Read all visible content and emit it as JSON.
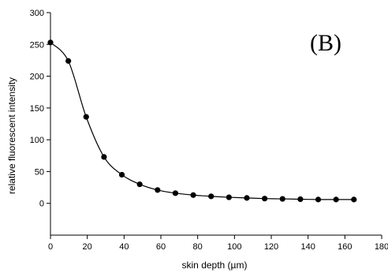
{
  "chart_data": {
    "type": "scatter",
    "panel_label": "(B)",
    "xlabel": "skin depth (µm)",
    "ylabel": "relative fluorescent intensity",
    "xlim": [
      0,
      180
    ],
    "ylim": [
      -50,
      300
    ],
    "x_ticks": [
      "0",
      "20",
      "40",
      "60",
      "80",
      "100",
      "120",
      "140",
      "160",
      "180"
    ],
    "y_ticks": [
      "0",
      "50",
      "100",
      "150",
      "200",
      "250",
      "300"
    ],
    "grid": false,
    "legend": "none",
    "series": [
      {
        "x": [
          0,
          9.7,
          19.4,
          29.1,
          38.8,
          48.5,
          58.2,
          67.9,
          77.6,
          87.3,
          97,
          106.7,
          116.4,
          126.1,
          135.8,
          145.5,
          155.2,
          164.9
        ],
        "y": [
          253,
          224,
          136,
          73,
          45,
          30,
          21,
          16,
          13,
          11,
          9.5,
          8.5,
          7.5,
          7,
          6.5,
          6,
          6,
          6
        ],
        "marker": "filled-circle",
        "fit_line": true
      }
    ],
    "colors": {
      "marker": "#000000",
      "line": "#000000",
      "axis": "#000000"
    }
  }
}
